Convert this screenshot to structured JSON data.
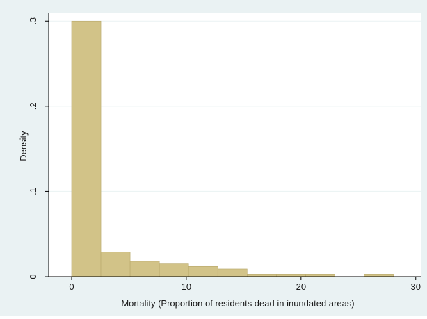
{
  "chart_data": {
    "type": "histogram",
    "title": "",
    "xlabel": "Mortality (Proportion of residents dead in inundated areas)",
    "ylabel": "Density",
    "xlim": [
      -2,
      30.5
    ],
    "ylim": [
      0,
      0.31
    ],
    "x_ticks": [
      0,
      10,
      20,
      30
    ],
    "x_tick_labels": [
      "0",
      "10",
      "20",
      "30"
    ],
    "y_ticks": [
      0,
      0.1,
      0.2,
      0.3
    ],
    "y_tick_labels": [
      "0",
      ".1",
      ".2",
      ".3"
    ],
    "grid": true,
    "bar_color": "#d2c388",
    "bar_edge_color": "#b8a86a",
    "bin_width": 2.55,
    "bins": [
      {
        "x0": 0.0,
        "x1": 2.55,
        "density": 0.3
      },
      {
        "x0": 2.55,
        "x1": 5.1,
        "density": 0.029
      },
      {
        "x0": 5.1,
        "x1": 7.65,
        "density": 0.018
      },
      {
        "x0": 7.65,
        "x1": 10.2,
        "density": 0.015
      },
      {
        "x0": 10.2,
        "x1": 12.75,
        "density": 0.012
      },
      {
        "x0": 12.75,
        "x1": 15.3,
        "density": 0.009
      },
      {
        "x0": 15.3,
        "x1": 17.85,
        "density": 0.003
      },
      {
        "x0": 17.85,
        "x1": 20.4,
        "density": 0.003
      },
      {
        "x0": 20.4,
        "x1": 22.95,
        "density": 0.003
      },
      {
        "x0": 22.95,
        "x1": 25.5,
        "density": 0.0
      },
      {
        "x0": 25.5,
        "x1": 28.05,
        "density": 0.003
      }
    ],
    "colors": {
      "outer_background": "#eaf2f3",
      "plot_background": "#ffffff",
      "grid": "#eaf2f3",
      "axis": "#000000"
    }
  }
}
